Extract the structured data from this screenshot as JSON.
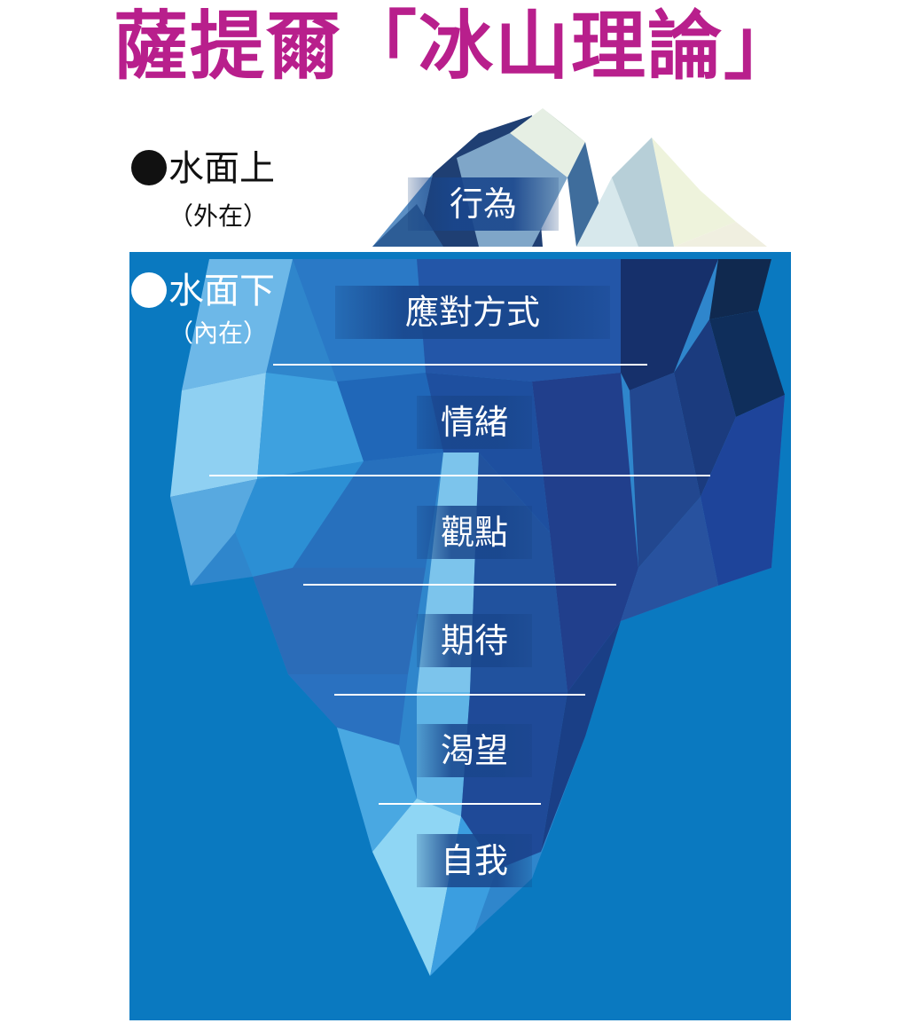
{
  "title": "薩提爾「冰山理論」",
  "above": {
    "label": "水面上",
    "sub": "（外在）",
    "dot_color": "#111111",
    "text_color": "#111111"
  },
  "below": {
    "label": "水面下",
    "sub": "（內在）",
    "dot_color": "#ffffff",
    "text_color": "#ffffff"
  },
  "layers": [
    {
      "label": "行為"
    },
    {
      "label": "應對方式"
    },
    {
      "label": "情緒"
    },
    {
      "label": "觀點"
    },
    {
      "label": "期待"
    },
    {
      "label": "渴望"
    },
    {
      "label": "自我"
    }
  ],
  "colors": {
    "title": "#b81f8c",
    "water": "#0a79c0",
    "ice_light": "#7ec8ee",
    "ice_mid": "#2f86cc",
    "ice_dark": "#1d4f9c",
    "ice_deep": "#15306f",
    "tip_light": "#e8f0e4"
  }
}
